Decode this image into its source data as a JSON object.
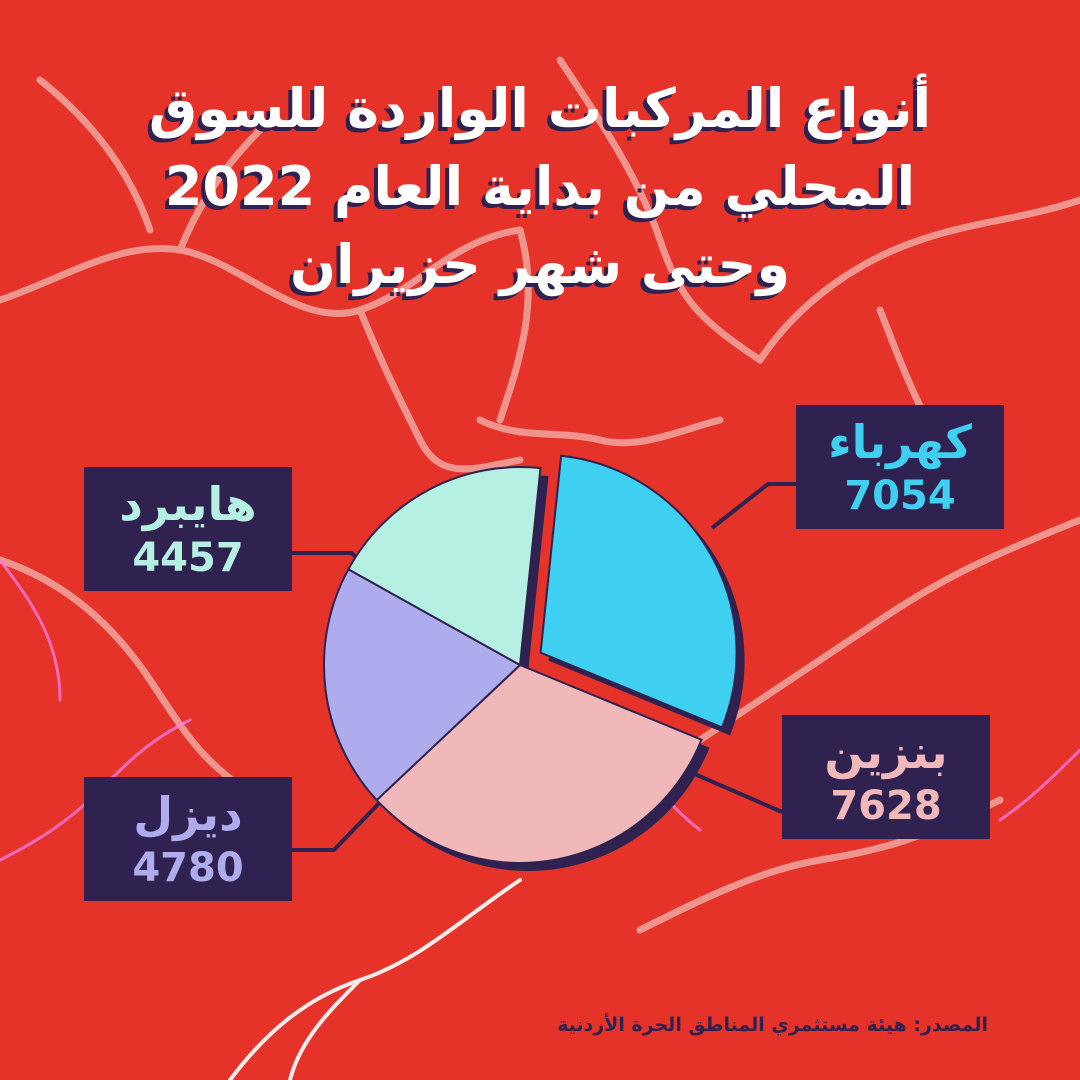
{
  "title": {
    "line1": "أنواع المركبات الواردة للسوق",
    "line2": "المحلي من بداية العام 2022",
    "line3": "وحتى شهر حزيران"
  },
  "source": "المصدر: هيئة مستثمري المناطق الحرة الأردنية",
  "colors": {
    "background": "#e5332a",
    "label_box": "#2f2150",
    "electric": "#3fcff0",
    "petrol": "#f0b8b8",
    "diesel": "#aeaced",
    "hybrid": "#b6f0e2"
  },
  "chart_data": {
    "type": "pie",
    "legend": "labels",
    "slices": [
      {
        "key": "electric",
        "label": "كهرباء",
        "value": 7054,
        "value_label": "7054",
        "color": "#3fcff0",
        "exploded": true
      },
      {
        "key": "petrol",
        "label": "بنزين",
        "value": 7628,
        "value_label": "7628",
        "color": "#f0b8b8",
        "exploded": false
      },
      {
        "key": "diesel",
        "label": "ديزل",
        "value": 4780,
        "value_label": "4780",
        "color": "#aeaced",
        "exploded": false
      },
      {
        "key": "hybrid",
        "label": "هايبرد",
        "value": 4457,
        "value_label": "4457",
        "color": "#b6f0e2",
        "exploded": false
      }
    ]
  }
}
